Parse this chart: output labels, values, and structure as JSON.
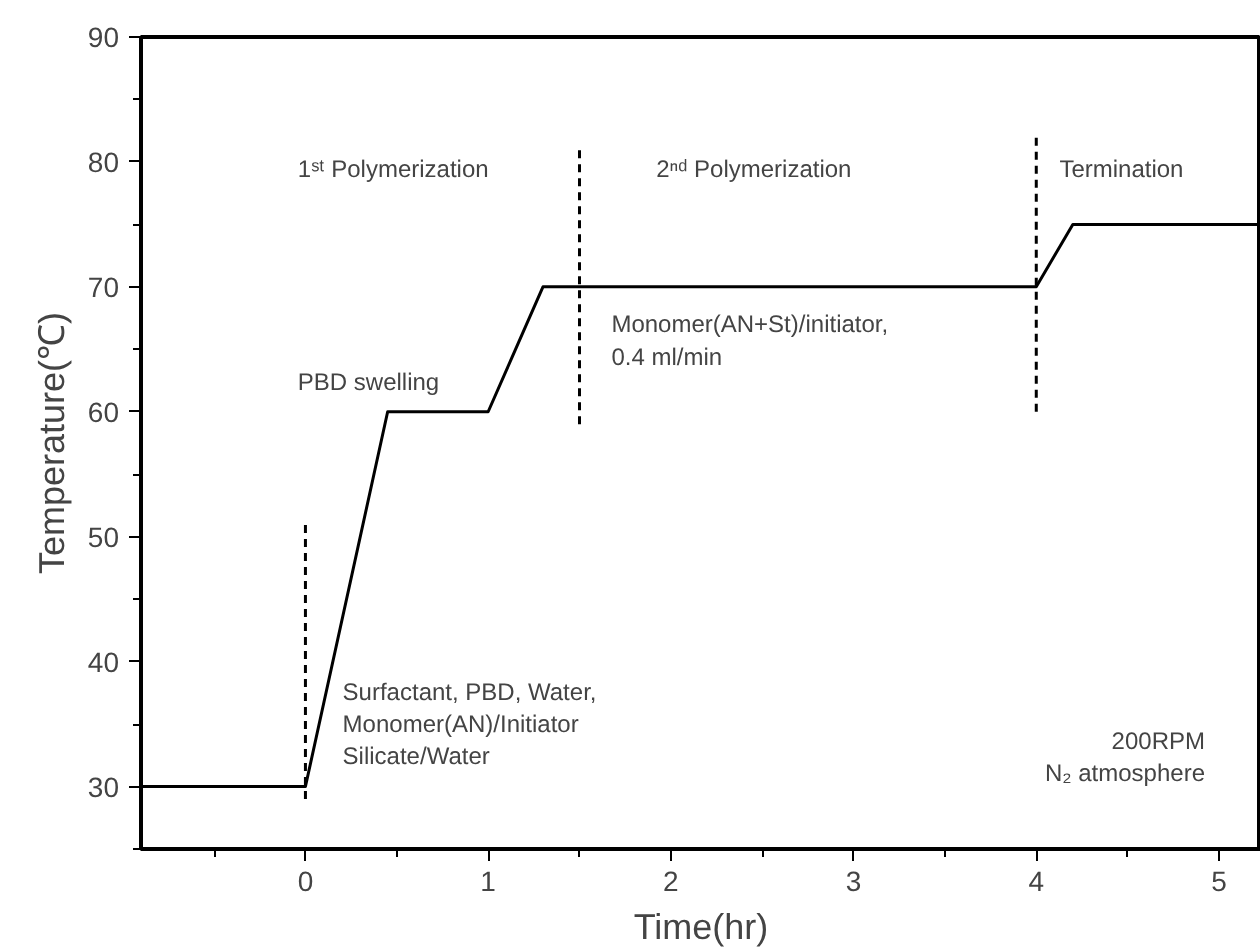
{
  "chart_data": {
    "type": "line",
    "xlabel": "Time(hr)",
    "ylabel": "Temperature(℃)",
    "xlim": [
      -0.9,
      5.23
    ],
    "ylim": [
      25,
      90
    ],
    "xticks": [
      0,
      1,
      2,
      3,
      4,
      5
    ],
    "yticks": [
      30,
      40,
      50,
      60,
      70,
      80,
      90
    ],
    "grid": false,
    "marker": "none",
    "series": [
      {
        "color": "#000000",
        "line_style": "solid",
        "x": [
          -0.9,
          0,
          0.45,
          1,
          1.3,
          4,
          4.2,
          5.23
        ],
        "values": [
          30,
          30,
          60,
          60,
          70,
          70,
          75,
          75
        ]
      },
      {
        "color": "#000000",
        "line_style": "dashed",
        "x": [
          0,
          0
        ],
        "values": [
          29,
          51
        ]
      },
      {
        "color": "#000000",
        "line_style": "dashed",
        "x": [
          1.5,
          1.5
        ],
        "values": [
          59,
          81
        ]
      },
      {
        "color": "#000000",
        "line_style": "dashed",
        "x": [
          4,
          4
        ],
        "values": [
          60,
          82
        ]
      }
    ],
    "annotations": [
      "1ˢᵗ Polymerization",
      "2ⁿᵈ Polymerization",
      "Termination",
      "PBD swelling",
      "Monomer(AN+St)/initiator,\n0.4 ml/min",
      "Surfactant, PBD, Water,\nMonomer(AN)/Initiator\nSilicate/Water",
      "200RPM\nN₂ atmosphere"
    ]
  }
}
